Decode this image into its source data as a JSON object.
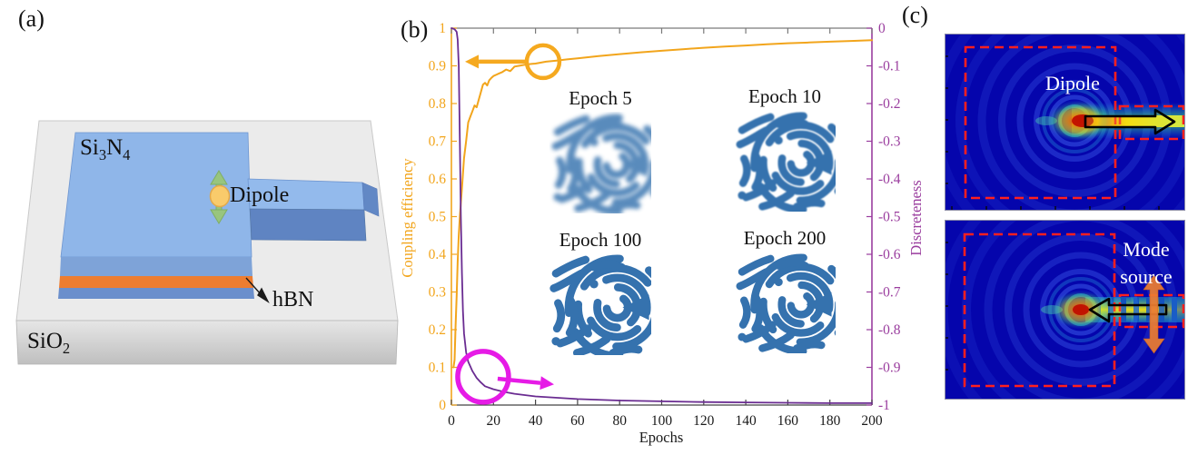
{
  "panel_a": {
    "label": "(a)",
    "si3n4": {
      "p1": "Si",
      "s1": "3",
      "p2": "N",
      "s2": "4"
    },
    "sio2": {
      "p1": "SiO",
      "s1": "2"
    },
    "hbn_label": "hBN",
    "dipole_label": "Dipole",
    "colors": {
      "substrate_top": "#ebebeb",
      "substrate_front": "#d2d2d2",
      "si3n4_top": "#8fb6e9",
      "si3n4_front": "#7ea3d8",
      "waveguide_front": "#5f84c2",
      "hbn": "#ed7d31",
      "dipole_fill": "#f9cb6b",
      "arrow_green": "#98c57e"
    }
  },
  "panel_b": {
    "label": "(b)"
  },
  "chart_data": {
    "type": "line",
    "xlabel": "Epochs",
    "ylabel_left": "Coupling efficiency",
    "ylabel_right": "Discreteness",
    "xlim": [
      0,
      200
    ],
    "ylim_left": [
      0,
      1
    ],
    "ylim_right": [
      -1,
      0
    ],
    "grid": false,
    "xticks": [
      0,
      20,
      40,
      60,
      80,
      100,
      120,
      140,
      160,
      180,
      200
    ],
    "xtick_labels": [
      "0",
      "20",
      "40",
      "60",
      "80",
      "100",
      "120",
      "140",
      "160",
      "180",
      "200"
    ],
    "yticks_left": [
      0,
      0.1,
      0.2,
      0.3,
      0.4,
      0.5,
      0.6,
      0.7,
      0.8,
      0.9,
      1
    ],
    "ytick_labels_left": [
      "0",
      "0.1",
      "0.2",
      "0.3",
      "0.4",
      "0.5",
      "0.6",
      "0.7",
      "0.8",
      "0.9",
      "1"
    ],
    "yticks_right": [
      0,
      -0.1,
      -0.2,
      -0.3,
      -0.4,
      -0.5,
      -0.6,
      -0.7,
      -0.8,
      -0.9,
      -1
    ],
    "ytick_labels_right": [
      "0",
      "-0.1",
      "-0.2",
      "-0.3",
      "-0.4",
      "-0.5",
      "-0.6",
      "-0.7",
      "-0.8",
      "-0.9",
      "-1"
    ],
    "axis_colors": {
      "left": "#f2a51c",
      "right": "#9a3d9e",
      "top": "#7a7a7a",
      "bottom": "#444444",
      "tick_text": "#1a1a1a"
    },
    "series": [
      {
        "name": "Coupling efficiency",
        "axis": "left",
        "color": "#f2a51c",
        "points": [
          [
            1,
            0.1
          ],
          [
            1.5,
            0.12
          ],
          [
            2,
            0.21
          ],
          [
            2.5,
            0.29
          ],
          [
            3,
            0.38
          ],
          [
            3.5,
            0.45
          ],
          [
            4,
            0.5
          ],
          [
            5,
            0.575
          ],
          [
            6,
            0.655
          ],
          [
            7,
            0.7
          ],
          [
            8,
            0.75
          ],
          [
            9,
            0.765
          ],
          [
            10,
            0.78
          ],
          [
            11,
            0.795
          ],
          [
            12,
            0.79
          ],
          [
            13,
            0.81
          ],
          [
            14,
            0.83
          ],
          [
            15,
            0.85
          ],
          [
            16,
            0.855
          ],
          [
            17,
            0.848
          ],
          [
            18,
            0.862
          ],
          [
            19,
            0.868
          ],
          [
            20,
            0.873
          ],
          [
            22,
            0.878
          ],
          [
            24,
            0.883
          ],
          [
            26,
            0.89
          ],
          [
            28,
            0.886
          ],
          [
            30,
            0.898
          ],
          [
            32,
            0.9
          ],
          [
            35,
            0.903
          ],
          [
            38,
            0.905
          ],
          [
            40,
            0.906
          ],
          [
            45,
            0.911
          ],
          [
            50,
            0.914
          ],
          [
            55,
            0.917
          ],
          [
            60,
            0.92
          ],
          [
            70,
            0.926
          ],
          [
            80,
            0.931
          ],
          [
            90,
            0.936
          ],
          [
            100,
            0.94
          ],
          [
            110,
            0.944
          ],
          [
            120,
            0.948
          ],
          [
            130,
            0.951
          ],
          [
            140,
            0.954
          ],
          [
            150,
            0.957
          ],
          [
            160,
            0.96
          ],
          [
            170,
            0.962
          ],
          [
            180,
            0.964
          ],
          [
            190,
            0.966
          ],
          [
            200,
            0.968
          ]
        ]
      },
      {
        "name": "Discreteness",
        "axis": "right",
        "color": "#6a2c91",
        "points": [
          [
            0,
            0
          ],
          [
            1.5,
            -0.003
          ],
          [
            2.5,
            -0.01
          ],
          [
            3,
            -0.03
          ],
          [
            3.5,
            -0.1
          ],
          [
            4,
            -0.3
          ],
          [
            4.5,
            -0.5
          ],
          [
            5,
            -0.65
          ],
          [
            5.5,
            -0.75
          ],
          [
            6,
            -0.81
          ],
          [
            7,
            -0.86
          ],
          [
            8,
            -0.885
          ],
          [
            10,
            -0.91
          ],
          [
            12,
            -0.928
          ],
          [
            14,
            -0.94
          ],
          [
            16,
            -0.95
          ],
          [
            20,
            -0.958
          ],
          [
            25,
            -0.965
          ],
          [
            30,
            -0.97
          ],
          [
            40,
            -0.977
          ],
          [
            60,
            -0.984
          ],
          [
            80,
            -0.988
          ],
          [
            100,
            -0.99
          ],
          [
            120,
            -0.992
          ],
          [
            140,
            -0.993
          ],
          [
            160,
            -0.994
          ],
          [
            180,
            -0.995
          ],
          [
            200,
            -0.995
          ]
        ]
      }
    ],
    "annotations": [
      {
        "name": "coupling-callout",
        "color": "#f5a91f",
        "shape": "circle",
        "circle": {
          "epoch": 43.6,
          "value": 0.911,
          "r": 18,
          "stroke": 4.5
        },
        "arrow": {
          "from": [
            35.9,
            0.911
          ],
          "to": [
            6.5,
            0.911
          ],
          "width": 4.5
        }
      },
      {
        "name": "discreteness-callout",
        "color": "#e61be6",
        "shape": "circle",
        "circle": {
          "epoch": 15.1,
          "value": 0.075,
          "r": 28,
          "stroke": 5.5
        },
        "arrow": {
          "from": [
            22,
            0.07
          ],
          "to": [
            48.8,
            0.055
          ],
          "width": 4.5
        }
      }
    ],
    "insets": [
      {
        "label": "Epoch 5"
      },
      {
        "label": "Epoch 10"
      },
      {
        "label": "Epoch 100"
      },
      {
        "label": "Epoch 200"
      }
    ],
    "inset_blue": "#3572ae"
  },
  "panel_c": {
    "label": "(c)",
    "top_label": "Dipole",
    "bottom_label_line1": "Mode",
    "bottom_label_line2": "source",
    "dash_color": "#ff1f1f",
    "mode_arrow_orange": "#ed7d31"
  }
}
